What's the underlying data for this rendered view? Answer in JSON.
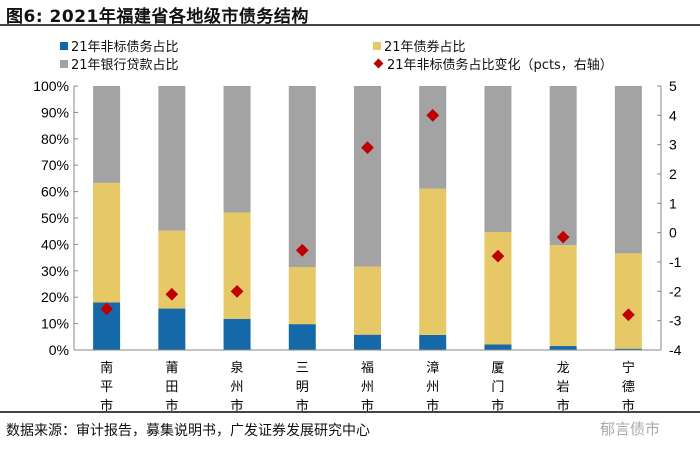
{
  "title": "图6:  2021年福建省各地级市债务结构",
  "legend": [
    {
      "label": "21年非标债务占比",
      "color": "#1569a8",
      "shape": "square"
    },
    {
      "label": "21年债券占比",
      "color": "#e6c866",
      "shape": "square"
    },
    {
      "label": "21年银行贷款占比",
      "color": "#a3a3a3",
      "shape": "square"
    },
    {
      "label": "21年非标债务占比变化（pcts，右轴）",
      "color": "#c00000",
      "shape": "diamond"
    }
  ],
  "source": "数据来源：审计报告，募集说明书，广发证券发展研究中心",
  "watermark": "郁言债市",
  "chart_data": {
    "type": "bar",
    "stacked": true,
    "categories": [
      "南平市",
      "莆田市",
      "泉州市",
      "三明市",
      "福州市",
      "漳州市",
      "厦门市",
      "龙岩市",
      "宁德市"
    ],
    "series": [
      {
        "name": "21年非标债务占比",
        "axis": "left",
        "values": [
          18.0,
          15.7,
          11.8,
          9.8,
          5.8,
          5.7,
          2.1,
          1.5,
          0.5
        ]
      },
      {
        "name": "21年债券占比",
        "axis": "left",
        "values": [
          45.3,
          29.5,
          40.3,
          21.6,
          25.8,
          55.4,
          42.6,
          38.2,
          36.1
        ]
      },
      {
        "name": "21年银行贷款占比",
        "axis": "left",
        "values": [
          36.7,
          54.8,
          47.9,
          68.6,
          68.4,
          38.9,
          55.3,
          60.3,
          63.4
        ]
      },
      {
        "name": "21年非标债务占比变化（pcts，右轴）",
        "axis": "right",
        "type": "scatter",
        "values": [
          -2.6,
          -2.1,
          -2.0,
          -0.6,
          2.9,
          4.0,
          -0.8,
          -0.15,
          -2.8
        ]
      }
    ],
    "ylim": [
      0,
      100
    ],
    "y_ticks": [
      "0%",
      "10%",
      "20%",
      "30%",
      "40%",
      "50%",
      "60%",
      "70%",
      "80%",
      "90%",
      "100%"
    ],
    "y2lim": [
      -4,
      5
    ],
    "y2_ticks": [
      "-4",
      "-3",
      "-2",
      "-1",
      "0",
      "1",
      "2",
      "3",
      "4",
      "5"
    ],
    "grid": false,
    "legend_position": "top"
  }
}
